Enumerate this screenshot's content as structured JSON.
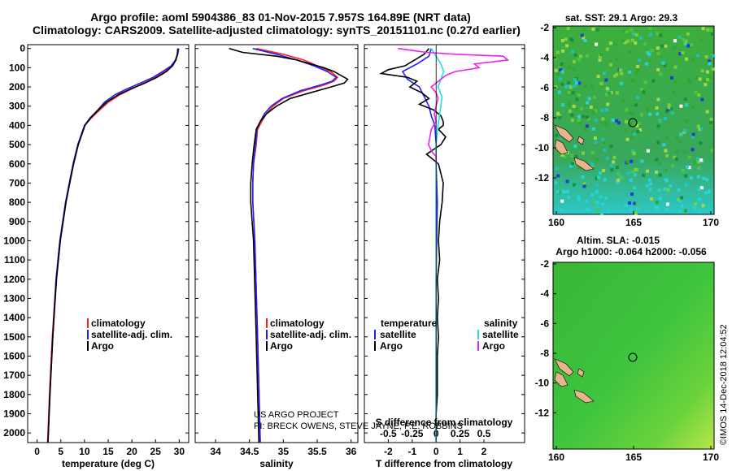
{
  "header": {
    "line1": "Argo profile: aoml 5904386_83 01-Nov-2015 7.957S 164.89E (NRT data)",
    "line2": "Climatology: CARS2009. Satellite-adjusted climatology: synTS_20151101.nc (0.27d earlier)"
  },
  "colors": {
    "climatology": "#ff2020",
    "satellite_adj": "#2020ff",
    "argo": "#000000",
    "satellite_sal": "#20e0e0",
    "argo_sal": "#ee20ee"
  },
  "depth_axis": {
    "ticks": [
      "0",
      "100",
      "200",
      "300",
      "400",
      "500",
      "600",
      "700",
      "800",
      "900",
      "1000",
      "1100",
      "1200",
      "1300",
      "1400",
      "1500",
      "1600",
      "1700",
      "1800",
      "1900",
      "2000"
    ]
  },
  "chart_data": [
    {
      "type": "line",
      "id": "temperature",
      "xlabel": "temperature (deg C)",
      "ylabel": "depth",
      "xlim": [
        -2,
        32
      ],
      "ylim": [
        2050,
        -20
      ],
      "xticks": [
        "0",
        "5",
        "10",
        "15",
        "20",
        "25",
        "30"
      ],
      "legend": [
        "climatology",
        "satellite-adj. clim.",
        "Argo"
      ],
      "series": [
        {
          "name": "climatology",
          "depth": [
            0,
            30,
            60,
            90,
            120,
            150,
            180,
            210,
            240,
            280,
            320,
            360,
            400,
            450,
            500,
            600,
            700,
            800,
            1000,
            1200,
            1500,
            1800,
            2050
          ],
          "values": [
            29.8,
            29.6,
            29.2,
            28.5,
            27,
            25,
            22.5,
            20,
            17.5,
            15,
            13.2,
            11.5,
            10,
            9.3,
            8.6,
            7.6,
            6.8,
            6,
            4.8,
            4,
            3.2,
            2.6,
            2.2
          ]
        },
        {
          "name": "satellite-adj. clim.",
          "depth": [
            0,
            30,
            60,
            90,
            120,
            150,
            180,
            210,
            240,
            280,
            320,
            360,
            400,
            450,
            500,
            600,
            700,
            800,
            1000,
            1200,
            1500,
            1800,
            2050
          ],
          "values": [
            29.9,
            29.7,
            29.2,
            28.3,
            26.5,
            24.5,
            21.8,
            19,
            16.5,
            14.2,
            12.8,
            11.2,
            10,
            9.3,
            8.6,
            7.6,
            6.8,
            6,
            4.8,
            4,
            3.3,
            2.7,
            2.3
          ]
        },
        {
          "name": "Argo",
          "depth": [
            0,
            30,
            60,
            90,
            120,
            150,
            180,
            210,
            240,
            280,
            320,
            360,
            400,
            450,
            500,
            600,
            700,
            800,
            1000,
            1200,
            1500,
            1800,
            2050
          ],
          "values": [
            29.7,
            29.6,
            29.3,
            28.6,
            27.3,
            25.3,
            22.8,
            19.8,
            17.2,
            14.6,
            12.9,
            11.3,
            10.1,
            9.4,
            8.7,
            7.7,
            6.9,
            6.1,
            4.9,
            4.1,
            3.3,
            2.7,
            2.3
          ]
        }
      ]
    },
    {
      "type": "line",
      "id": "salinity",
      "xlabel": "salinity",
      "ylabel": "depth",
      "xlim": [
        33.7,
        36.1
      ],
      "ylim": [
        2050,
        -20
      ],
      "xticks": [
        "34",
        "34.5",
        "35",
        "35.5",
        "36"
      ],
      "legend": [
        "climatology",
        "satellite-adj. clim.",
        "Argo"
      ],
      "series": [
        {
          "name": "climatology",
          "depth": [
            0,
            30,
            60,
            90,
            120,
            150,
            170,
            190,
            220,
            260,
            300,
            340,
            380,
            420,
            500,
            600,
            700,
            800,
            1000,
            1500,
            2050
          ],
          "values": [
            34.6,
            35,
            35.3,
            35.5,
            35.7,
            35.8,
            35.75,
            35.6,
            35.3,
            35,
            34.85,
            34.75,
            34.68,
            34.62,
            34.6,
            34.56,
            34.55,
            34.55,
            34.58,
            34.62,
            34.66
          ]
        },
        {
          "name": "satellite-adj. clim.",
          "depth": [
            0,
            30,
            60,
            90,
            120,
            150,
            170,
            190,
            220,
            260,
            300,
            340,
            380,
            420,
            500,
            600,
            700,
            800,
            1000,
            1500,
            2050
          ],
          "values": [
            34.55,
            34.9,
            35.2,
            35.45,
            35.65,
            35.78,
            35.72,
            35.55,
            35.25,
            34.98,
            34.82,
            34.72,
            34.66,
            34.61,
            34.59,
            34.56,
            34.55,
            34.55,
            34.58,
            34.62,
            34.66
          ]
        },
        {
          "name": "Argo",
          "depth": [
            0,
            20,
            40,
            60,
            80,
            100,
            120,
            140,
            160,
            180,
            200,
            230,
            260,
            300,
            340,
            380,
            420,
            500,
            600,
            700,
            800,
            1000,
            1500,
            2050
          ],
          "values": [
            34.2,
            34.4,
            34.9,
            35.2,
            35.4,
            35.6,
            35.75,
            35.85,
            35.95,
            35.9,
            35.7,
            35.4,
            35.1,
            34.9,
            34.75,
            34.66,
            34.6,
            34.57,
            34.54,
            34.52,
            34.52,
            34.56,
            34.6,
            34.64
          ]
        }
      ]
    },
    {
      "type": "line",
      "id": "difference",
      "xlabel": "T difference from climatology",
      "xlabel_top": "S difference from climatology",
      "xlim": [
        -3,
        3.7
      ],
      "ylim": [
        2050,
        -20
      ],
      "xticks_bottom": [
        "-2",
        "-1",
        "0",
        "1",
        "2"
      ],
      "xticks_top": [
        "-0.5",
        "-0.25",
        "0",
        "0.25",
        "0.5"
      ],
      "legend_left_title": "temperature",
      "legend_left": [
        "satellite",
        "Argo"
      ],
      "legend_right_title": "salinity",
      "legend_right": [
        "satellite",
        "Argo"
      ],
      "series": [
        {
          "name": "T satellite",
          "depth": [
            0,
            40,
            80,
            120,
            160,
            200,
            250,
            300,
            350,
            400,
            500,
            600,
            800,
            1200,
            1600,
            2050
          ],
          "values": [
            -0.2,
            -0.3,
            -0.8,
            -1.4,
            -1.2,
            -0.7,
            -0.5,
            -0.3,
            -0.2,
            -0.05,
            0,
            0,
            0.05,
            0,
            0,
            0
          ]
        },
        {
          "name": "T Argo",
          "depth": [
            0,
            30,
            60,
            90,
            110,
            130,
            150,
            170,
            200,
            230,
            260,
            290,
            320,
            350,
            380,
            400,
            420,
            460,
            500,
            550,
            600,
            700,
            800,
            900,
            1000,
            1100,
            1200,
            1300,
            1400,
            1500,
            1600,
            1700,
            1800,
            1900,
            2050
          ],
          "values": [
            -0.3,
            -0.5,
            -0.9,
            -1.3,
            -2.0,
            -2.3,
            -1.2,
            -0.8,
            -1.1,
            -0.6,
            -0.3,
            -0.7,
            -0.1,
            0.2,
            0.3,
            0.3,
            0.1,
            0.4,
            0.2,
            -0.4,
            0.1,
            0.3,
            0.25,
            0.15,
            0.1,
            0.15,
            0.05,
            0.1,
            0.05,
            0.1,
            0.05,
            0.05,
            0.05,
            0,
            0
          ]
        },
        {
          "name": "S satellite",
          "depth": [
            0,
            40,
            80,
            120,
            160,
            200,
            250,
            300,
            400,
            500,
            700,
            1000,
            1500,
            2050
          ],
          "values": [
            -0.05,
            0,
            0.05,
            0.08,
            0.05,
            0.02,
            0.06,
            0.05,
            0.02,
            0,
            0,
            0,
            0,
            0
          ]
        },
        {
          "name": "S Argo",
          "depth": [
            0,
            10,
            20,
            30,
            40,
            60,
            80,
            100,
            120,
            140,
            160,
            180,
            200,
            230,
            260,
            300,
            340,
            380,
            420,
            500,
            540,
            560,
            600
          ],
          "values": [
            -0.4,
            -0.25,
            -0.1,
            0.2,
            0.7,
            0.75,
            0.4,
            0.45,
            0.2,
            0.1,
            0.05,
            0,
            -0.05,
            0,
            0.02,
            0,
            -0.02,
            0,
            -0.05,
            -0.08,
            -0.04,
            0,
            0
          ]
        }
      ]
    }
  ],
  "maps": {
    "top": {
      "title": "sat. SST: 29.1 Argo: 29.3",
      "yticks": [
        "-2",
        "-4",
        "-6",
        "-8",
        "-10",
        "-12"
      ],
      "xticks": [
        "160",
        "165",
        "170"
      ]
    },
    "bottom": {
      "title1": "Altim. SLA: -0.015",
      "title2": "Argo h1000: -0.064 h2000: -0.056",
      "yticks": [
        "-2",
        "-4",
        "-6",
        "-8",
        "-10",
        "-12"
      ],
      "xticks": [
        "160",
        "165",
        "170"
      ]
    }
  },
  "credits": {
    "project": "US ARGO PROJECT",
    "pi": "PI: BRECK OWENS, STEVE JAYNE, P.E. ROBBINS",
    "stamp": "©IMOS 14-Dec-2018 12:04:52"
  }
}
